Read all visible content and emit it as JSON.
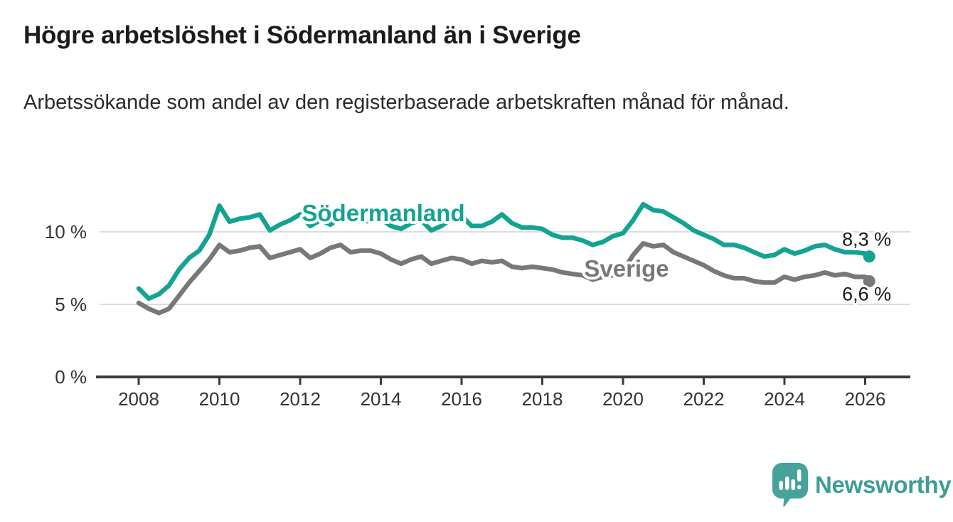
{
  "header": {
    "title": "Högre arbetslöshet i Södermanland än i Sverige",
    "subtitle": "Arbetssökande som andel av den registerbaserade arbetskraften månad för månad."
  },
  "chart_data": {
    "type": "line",
    "title": "Högre arbetslöshet i Södermanland än i Sverige",
    "subtitle": "Arbetssökande som andel av den registerbaserade arbetskraften månad för månad.",
    "xlabel": "",
    "ylabel": "",
    "ylim": [
      0,
      12.5
    ],
    "xlim": [
      2006.9,
      2027.1
    ],
    "grid": "horizontal",
    "legend_position": "inline-labels",
    "y_ticks": [
      {
        "value": 0,
        "label": "0 %"
      },
      {
        "value": 5,
        "label": "5 %"
      },
      {
        "value": 10,
        "label": "10 %"
      }
    ],
    "x_ticks": [
      {
        "value": 2008,
        "label": "2008"
      },
      {
        "value": 2010,
        "label": "2010"
      },
      {
        "value": 2012,
        "label": "2012"
      },
      {
        "value": 2014,
        "label": "2014"
      },
      {
        "value": 2016,
        "label": "2016"
      },
      {
        "value": 2018,
        "label": "2018"
      },
      {
        "value": 2020,
        "label": "2020"
      },
      {
        "value": 2022,
        "label": "2022"
      },
      {
        "value": 2024,
        "label": "2024"
      },
      {
        "value": 2026,
        "label": "2026"
      }
    ],
    "x": [
      2008,
      2008.25,
      2008.5,
      2008.75,
      2009,
      2009.25,
      2009.5,
      2009.75,
      2010,
      2010.25,
      2010.5,
      2010.75,
      2011,
      2011.25,
      2011.5,
      2011.75,
      2012,
      2012.25,
      2012.5,
      2012.75,
      2013,
      2013.25,
      2013.5,
      2013.75,
      2014,
      2014.25,
      2014.5,
      2014.75,
      2015,
      2015.25,
      2015.5,
      2015.75,
      2016,
      2016.25,
      2016.5,
      2016.75,
      2017,
      2017.25,
      2017.5,
      2017.75,
      2018,
      2018.25,
      2018.5,
      2018.75,
      2019,
      2019.25,
      2019.5,
      2019.75,
      2020,
      2020.25,
      2020.5,
      2020.75,
      2021,
      2021.25,
      2021.5,
      2021.75,
      2022,
      2022.25,
      2022.5,
      2022.75,
      2023,
      2023.25,
      2023.5,
      2023.75,
      2024,
      2024.25,
      2024.5,
      2024.75,
      2025,
      2025.25,
      2025.5,
      2025.75,
      2026,
      2026.1
    ],
    "series": [
      {
        "name": "Södermanland",
        "inline_label": "Södermanland",
        "color": "#14A392",
        "end_label": "8,3 %",
        "end_value": 8.3,
        "values": [
          6.1,
          5.4,
          5.7,
          6.3,
          7.4,
          8.2,
          8.7,
          9.8,
          11.8,
          10.7,
          10.9,
          11.0,
          11.2,
          10.1,
          10.5,
          10.8,
          11.2,
          10.4,
          10.8,
          10.5,
          11.0,
          11.1,
          10.8,
          10.7,
          10.9,
          10.4,
          10.2,
          10.6,
          10.8,
          10.1,
          10.4,
          10.9,
          11.1,
          10.4,
          10.4,
          10.7,
          11.2,
          10.6,
          10.3,
          10.3,
          10.2,
          9.8,
          9.6,
          9.6,
          9.4,
          9.1,
          9.3,
          9.7,
          9.9,
          10.8,
          11.9,
          11.5,
          11.4,
          11.0,
          10.6,
          10.1,
          9.8,
          9.5,
          9.1,
          9.1,
          8.9,
          8.6,
          8.3,
          8.4,
          8.8,
          8.5,
          8.7,
          9.0,
          9.1,
          8.8,
          8.6,
          8.6,
          8.5,
          8.3
        ]
      },
      {
        "name": "Sverige",
        "inline_label": "Sverige",
        "color": "#787878",
        "end_label": "6,6 %",
        "end_value": 6.6,
        "values": [
          5.1,
          4.7,
          4.4,
          4.7,
          5.6,
          6.5,
          7.3,
          8.1,
          9.1,
          8.6,
          8.7,
          8.9,
          9.0,
          8.2,
          8.4,
          8.6,
          8.8,
          8.2,
          8.5,
          8.9,
          9.1,
          8.6,
          8.7,
          8.7,
          8.5,
          8.1,
          7.8,
          8.1,
          8.3,
          7.8,
          8.0,
          8.2,
          8.1,
          7.8,
          8.0,
          7.9,
          8.0,
          7.6,
          7.5,
          7.6,
          7.5,
          7.4,
          7.2,
          7.1,
          7.0,
          6.7,
          6.9,
          7.0,
          7.3,
          8.4,
          9.2,
          9.0,
          9.1,
          8.6,
          8.3,
          8.0,
          7.7,
          7.3,
          7.0,
          6.8,
          6.8,
          6.6,
          6.5,
          6.5,
          6.9,
          6.7,
          6.9,
          7.0,
          7.2,
          7.0,
          7.1,
          6.9,
          6.9,
          6.6
        ]
      }
    ]
  },
  "footer": {
    "brand": "Newsworthy",
    "logo_icon": "newsworthy-chart-bubble-icon",
    "brand_color": "#3E9D96"
  }
}
